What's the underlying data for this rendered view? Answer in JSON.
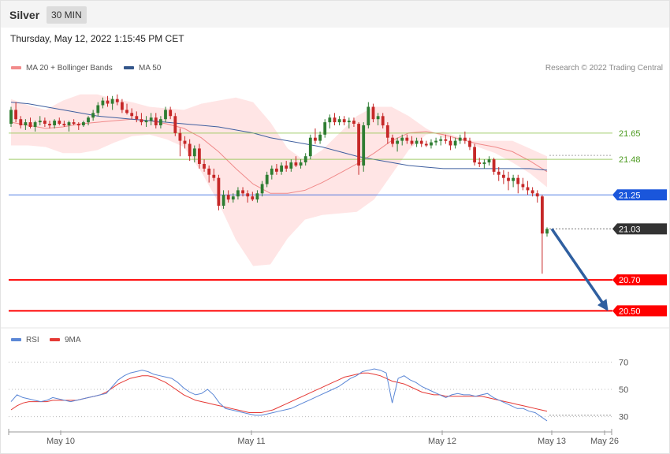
{
  "header": {
    "symbol": "Silver",
    "interval": "30 MIN"
  },
  "timestamp": "Thursday, May 12, 2022 1:15:45 PM CET",
  "copyright": "Research © 2022 Trading Central",
  "colors": {
    "bull": "#2e7d32",
    "bear": "#c62828",
    "bb_fill": "#ffdcdc",
    "ma20": "#f08a8a",
    "ma50": "#3f5f9f",
    "support_red": "#ff0000",
    "pivot_blue": "#1a56db",
    "resistance_green": "#8bc34a",
    "arrow": "#2f5fa0",
    "rsi": "#5b87d6",
    "rsi_ma": "#e53935"
  },
  "chart_data": [
    {
      "type": "candlestick",
      "title": "",
      "legend": [
        {
          "name": "MA 20 + Bollinger Bands",
          "color": "#f28b8b"
        },
        {
          "name": "MA 50",
          "color": "#34568b"
        }
      ],
      "price_range": [
        20.42,
        21.95
      ],
      "levels": [
        {
          "value": 21.65,
          "label": "21.65",
          "color": "#8bc34a",
          "type": "resistance"
        },
        {
          "value": 21.48,
          "label": "21.48",
          "color": "#8bc34a",
          "type": "resistance"
        },
        {
          "value": 21.25,
          "label": "21.25",
          "color": "#1a56db",
          "type": "pivot"
        },
        {
          "value": 21.03,
          "label": "21.03",
          "color": "#333333",
          "type": "last"
        },
        {
          "value": 20.7,
          "label": "20.70",
          "color": "#ff0000",
          "type": "support"
        },
        {
          "value": 20.5,
          "label": "20.50",
          "color": "#ff0000",
          "type": "support"
        }
      ],
      "forecast_arrow": {
        "from": 21.03,
        "to": 20.5
      },
      "ma50": [
        21.85,
        21.84,
        21.82,
        21.8,
        21.78,
        21.76,
        21.75,
        21.74,
        21.73,
        21.72,
        21.71,
        21.7,
        21.69,
        21.67,
        21.65,
        21.62,
        21.6,
        21.58,
        21.56,
        21.53,
        21.5,
        21.48,
        21.46,
        21.44,
        21.43,
        21.42,
        21.42,
        21.42,
        21.42,
        21.42,
        21.42,
        21.41
      ],
      "ma20": [
        21.72,
        21.7,
        21.68,
        21.69,
        21.71,
        21.72,
        21.73,
        21.74,
        21.73,
        21.71,
        21.68,
        21.62,
        21.53,
        21.42,
        21.32,
        21.26,
        21.26,
        21.28,
        21.33,
        21.39,
        21.45,
        21.52,
        21.6,
        21.65,
        21.66,
        21.64,
        21.61,
        21.58,
        21.56,
        21.53,
        21.47,
        21.4
      ],
      "bb_upper": [
        21.87,
        21.83,
        21.8,
        21.86,
        21.9,
        21.9,
        21.87,
        21.85,
        21.82,
        21.81,
        21.8,
        21.84,
        21.86,
        21.88,
        21.85,
        21.72,
        21.55,
        21.47,
        21.54,
        21.65,
        21.76,
        21.82,
        21.82,
        21.76,
        21.68,
        21.62,
        21.6,
        21.6,
        21.6,
        21.6,
        21.55,
        21.5
      ],
      "bb_lower": [
        21.57,
        21.57,
        21.56,
        21.52,
        21.52,
        21.54,
        21.59,
        21.63,
        21.64,
        21.61,
        21.56,
        21.4,
        21.2,
        20.96,
        20.79,
        20.8,
        20.97,
        21.09,
        21.12,
        21.13,
        21.14,
        21.22,
        21.38,
        21.54,
        21.64,
        21.66,
        21.62,
        21.56,
        21.52,
        21.46,
        21.39,
        21.3
      ],
      "ohlc": [
        [
          21.71,
          21.82,
          21.69,
          21.8
        ],
        [
          21.8,
          21.85,
          21.72,
          21.74
        ],
        [
          21.74,
          21.76,
          21.68,
          21.7
        ],
        [
          21.7,
          21.74,
          21.67,
          21.72
        ],
        [
          21.72,
          21.75,
          21.68,
          21.69
        ],
        [
          21.69,
          21.73,
          21.66,
          21.72
        ],
        [
          21.72,
          21.76,
          21.7,
          21.73
        ],
        [
          21.73,
          21.75,
          21.69,
          21.71
        ],
        [
          21.71,
          21.73,
          21.68,
          21.7
        ],
        [
          21.7,
          21.74,
          21.68,
          21.73
        ],
        [
          21.73,
          21.75,
          21.7,
          21.71
        ],
        [
          21.71,
          21.73,
          21.69,
          21.7
        ],
        [
          21.7,
          21.73,
          21.66,
          21.72
        ],
        [
          21.72,
          21.74,
          21.7,
          21.71
        ],
        [
          21.71,
          21.72,
          21.67,
          21.7
        ],
        [
          21.7,
          21.73,
          21.69,
          21.72
        ],
        [
          21.72,
          21.76,
          21.7,
          21.75
        ],
        [
          21.75,
          21.8,
          21.73,
          21.78
        ],
        [
          21.78,
          21.85,
          21.76,
          21.83
        ],
        [
          21.83,
          21.88,
          21.81,
          21.86
        ],
        [
          21.86,
          21.89,
          21.82,
          21.84
        ],
        [
          21.84,
          21.89,
          21.8,
          21.87
        ],
        [
          21.87,
          21.9,
          21.83,
          21.85
        ],
        [
          21.85,
          21.87,
          21.78,
          21.8
        ],
        [
          21.8,
          21.84,
          21.77,
          21.78
        ],
        [
          21.78,
          21.81,
          21.74,
          21.76
        ],
        [
          21.76,
          21.79,
          21.72,
          21.74
        ],
        [
          21.74,
          21.78,
          21.7,
          21.72
        ],
        [
          21.72,
          21.76,
          21.69,
          21.73
        ],
        [
          21.73,
          21.78,
          21.7,
          21.75
        ],
        [
          21.75,
          21.78,
          21.68,
          21.7
        ],
        [
          21.7,
          21.76,
          21.68,
          21.74
        ],
        [
          21.74,
          21.82,
          21.72,
          21.8
        ],
        [
          21.8,
          21.82,
          21.74,
          21.76
        ],
        [
          21.76,
          21.78,
          21.63,
          21.65
        ],
        [
          21.65,
          21.68,
          21.5,
          21.6
        ],
        [
          21.6,
          21.63,
          21.55,
          21.58
        ],
        [
          21.58,
          21.61,
          21.47,
          21.5
        ],
        [
          21.5,
          21.57,
          21.46,
          21.55
        ],
        [
          21.55,
          21.58,
          21.42,
          21.45
        ],
        [
          21.45,
          21.48,
          21.4,
          21.42
        ],
        [
          21.42,
          21.44,
          21.33,
          21.38
        ],
        [
          21.38,
          21.42,
          21.34,
          21.36
        ],
        [
          21.36,
          21.38,
          21.15,
          21.18
        ],
        [
          21.18,
          21.28,
          21.16,
          21.25
        ],
        [
          21.25,
          21.28,
          21.2,
          21.22
        ],
        [
          21.22,
          21.26,
          21.2,
          21.24
        ],
        [
          21.24,
          21.3,
          21.22,
          21.28
        ],
        [
          21.28,
          21.3,
          21.24,
          21.26
        ],
        [
          21.26,
          21.28,
          21.2,
          21.24
        ],
        [
          21.24,
          21.27,
          21.21,
          21.22
        ],
        [
          21.22,
          21.28,
          21.2,
          21.26
        ],
        [
          21.26,
          21.34,
          21.24,
          21.32
        ],
        [
          21.32,
          21.4,
          21.3,
          21.38
        ],
        [
          21.38,
          21.44,
          21.35,
          21.42
        ],
        [
          21.42,
          21.45,
          21.38,
          21.4
        ],
        [
          21.4,
          21.46,
          21.38,
          21.44
        ],
        [
          21.44,
          21.47,
          21.4,
          21.42
        ],
        [
          21.42,
          21.48,
          21.4,
          21.46
        ],
        [
          21.46,
          21.5,
          21.43,
          21.44
        ],
        [
          21.44,
          21.48,
          21.42,
          21.46
        ],
        [
          21.46,
          21.52,
          21.44,
          21.5
        ],
        [
          21.5,
          21.64,
          21.48,
          21.62
        ],
        [
          21.62,
          21.68,
          21.58,
          21.6
        ],
        [
          21.6,
          21.66,
          21.58,
          21.64
        ],
        [
          21.64,
          21.74,
          21.62,
          21.72
        ],
        [
          21.72,
          21.77,
          21.68,
          21.75
        ],
        [
          21.75,
          21.78,
          21.7,
          21.72
        ],
        [
          21.72,
          21.76,
          21.7,
          21.74
        ],
        [
          21.74,
          21.76,
          21.7,
          21.72
        ],
        [
          21.72,
          21.75,
          21.68,
          21.73
        ],
        [
          21.73,
          21.75,
          21.69,
          21.71
        ],
        [
          21.71,
          21.72,
          21.38,
          21.44
        ],
        [
          21.44,
          21.72,
          21.4,
          21.7
        ],
        [
          21.7,
          21.85,
          21.68,
          21.82
        ],
        [
          21.82,
          21.84,
          21.72,
          21.74
        ],
        [
          21.74,
          21.78,
          21.7,
          21.76
        ],
        [
          21.76,
          21.78,
          21.68,
          21.7
        ],
        [
          21.7,
          21.72,
          21.58,
          21.62
        ],
        [
          21.62,
          21.64,
          21.56,
          21.58
        ],
        [
          21.58,
          21.62,
          21.53,
          21.6
        ],
        [
          21.6,
          21.64,
          21.57,
          21.62
        ],
        [
          21.62,
          21.64,
          21.58,
          21.6
        ],
        [
          21.6,
          21.63,
          21.57,
          21.58
        ],
        [
          21.58,
          21.62,
          21.56,
          21.6
        ],
        [
          21.6,
          21.62,
          21.56,
          21.58
        ],
        [
          21.58,
          21.6,
          21.56,
          21.57
        ],
        [
          21.57,
          21.61,
          21.55,
          21.59
        ],
        [
          21.59,
          21.62,
          21.57,
          21.6
        ],
        [
          21.6,
          21.63,
          21.57,
          21.61
        ],
        [
          21.61,
          21.64,
          21.58,
          21.6
        ],
        [
          21.6,
          21.63,
          21.54,
          21.57
        ],
        [
          21.57,
          21.62,
          21.55,
          21.6
        ],
        [
          21.6,
          21.64,
          21.58,
          21.62
        ],
        [
          21.62,
          21.66,
          21.58,
          21.6
        ],
        [
          21.6,
          21.62,
          21.54,
          21.56
        ],
        [
          21.56,
          21.58,
          21.44,
          21.46
        ],
        [
          21.46,
          21.49,
          21.43,
          21.45
        ],
        [
          21.45,
          21.48,
          21.42,
          21.46
        ],
        [
          21.46,
          21.5,
          21.44,
          21.48
        ],
        [
          21.48,
          21.49,
          21.38,
          21.4
        ],
        [
          21.4,
          21.43,
          21.34,
          21.38
        ],
        [
          21.38,
          21.41,
          21.32,
          21.36
        ],
        [
          21.36,
          21.4,
          21.28,
          21.34
        ],
        [
          21.34,
          21.38,
          21.3,
          21.36
        ],
        [
          21.36,
          21.38,
          21.26,
          21.32
        ],
        [
          21.32,
          21.36,
          21.28,
          21.3
        ],
        [
          21.3,
          21.34,
          21.25,
          21.28
        ],
        [
          21.28,
          21.3,
          21.24,
          21.26
        ],
        [
          21.26,
          21.28,
          21.2,
          21.24
        ],
        [
          21.24,
          21.25,
          20.74,
          21.0
        ],
        [
          21.0,
          21.04,
          20.98,
          21.03
        ]
      ]
    },
    {
      "type": "line",
      "title": "",
      "legend": [
        {
          "name": "RSI",
          "color": "#5b87d6"
        },
        {
          "name": "9MA",
          "color": "#e53935"
        }
      ],
      "ylim": [
        20,
        80
      ],
      "y_ticks": [
        "70",
        "50",
        "30"
      ],
      "x_ticks": [
        "May 10",
        "May 11",
        "May 12",
        "May 13",
        "May 26"
      ],
      "rsi": [
        41,
        46,
        44,
        43,
        42,
        41,
        42,
        44,
        43,
        42,
        41,
        42,
        43,
        44,
        45,
        46,
        47,
        52,
        57,
        60,
        62,
        63,
        64,
        63,
        61,
        60,
        59,
        58,
        55,
        51,
        48,
        46,
        47,
        50,
        46,
        40,
        36,
        35,
        34,
        33,
        32,
        31,
        31,
        32,
        33,
        34,
        35,
        36,
        38,
        40,
        42,
        44,
        46,
        48,
        50,
        52,
        55,
        58,
        60,
        63,
        64,
        65,
        64,
        62,
        40,
        58,
        60,
        57,
        55,
        52,
        50,
        48,
        46,
        44,
        46,
        47,
        46,
        46,
        45,
        46,
        47,
        44,
        42,
        40,
        38,
        36,
        36,
        34,
        33,
        30,
        27
      ],
      "rsi_ma": [
        35,
        38,
        40,
        41,
        41,
        41,
        41,
        42,
        42,
        42,
        42,
        42,
        43,
        44,
        45,
        46,
        48,
        51,
        54,
        56,
        58,
        59,
        60,
        60,
        59,
        57,
        55,
        52,
        49,
        46,
        44,
        42,
        41,
        40,
        39,
        38,
        37,
        36,
        35,
        34,
        33,
        33,
        33,
        34,
        35,
        37,
        39,
        41,
        43,
        45,
        47,
        49,
        51,
        53,
        55,
        57,
        59,
        60,
        61,
        62,
        62,
        61,
        60,
        58,
        56,
        55,
        54,
        52,
        50,
        48,
        47,
        46,
        46,
        45,
        45,
        45,
        45,
        45,
        45,
        45,
        44,
        43,
        42,
        41,
        40,
        39,
        38,
        37,
        36,
        35,
        34
      ]
    }
  ]
}
